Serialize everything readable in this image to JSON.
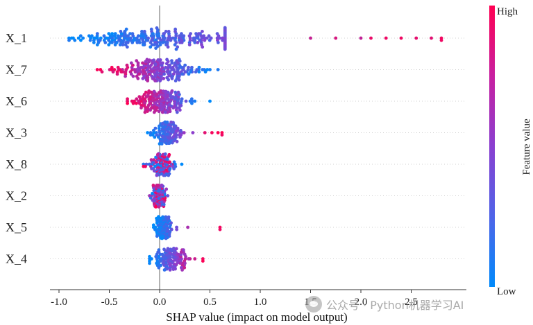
{
  "chart_data": {
    "type": "scatter",
    "subtype": "shap-beeswarm",
    "xlabel": "SHAP value (impact on model output)",
    "xlim": [
      -1.1,
      2.95
    ],
    "xticks": [
      -1.0,
      -0.5,
      0.0,
      0.5,
      1.0,
      1.5,
      2.0,
      2.5
    ],
    "xtick_labels": [
      "-1.0",
      "-0.5",
      "0.0",
      "0.5",
      "1.0",
      "1.5",
      "2.0",
      "2.5"
    ],
    "features": [
      {
        "name": "X_1",
        "min": -0.9,
        "max": 2.8,
        "core": [
          -0.7,
          0.6
        ],
        "high_on": "right",
        "sample_outliers": [
          1.5,
          1.75,
          2.0,
          2.1,
          2.25,
          2.4,
          2.55,
          2.7,
          2.8
        ]
      },
      {
        "name": "X_7",
        "min": -0.62,
        "max": 0.58,
        "core": [
          -0.5,
          0.45
        ],
        "high_on": "left",
        "sample_outliers": []
      },
      {
        "name": "X_6",
        "min": -0.32,
        "max": 0.5,
        "core": [
          -0.25,
          0.3
        ],
        "high_on": "left",
        "sample_outliers": []
      },
      {
        "name": "X_3",
        "min": -0.12,
        "max": 0.62,
        "core": [
          -0.1,
          0.25
        ],
        "high_on": "right",
        "sample_outliers": [
          0.33,
          0.45,
          0.52,
          0.58,
          0.62
        ]
      },
      {
        "name": "X_8",
        "min": -0.16,
        "max": 0.22,
        "core": [
          -0.1,
          0.15
        ],
        "high_on": "mixed",
        "sample_outliers": []
      },
      {
        "name": "X_2",
        "min": -0.1,
        "max": 0.08,
        "core": [
          -0.08,
          0.07
        ],
        "high_on": "mixed",
        "sample_outliers": []
      },
      {
        "name": "X_5",
        "min": -0.06,
        "max": 0.6,
        "core": [
          -0.05,
          0.12
        ],
        "high_on": "right",
        "sample_outliers": [
          0.17,
          0.28,
          0.6
        ]
      },
      {
        "name": "X_4",
        "min": -0.1,
        "max": 0.43,
        "core": [
          -0.08,
          0.3
        ],
        "high_on": "right",
        "sample_outliers": [
          0.35,
          0.43
        ]
      }
    ],
    "colorbar": {
      "title": "Feature value",
      "high_label": "High",
      "low_label": "Low",
      "low_color": "#008afb",
      "high_color": "#ff0052"
    }
  },
  "watermark": {
    "text": "公众号 · Python机器学习AI",
    "icon": "wechat-icon"
  }
}
